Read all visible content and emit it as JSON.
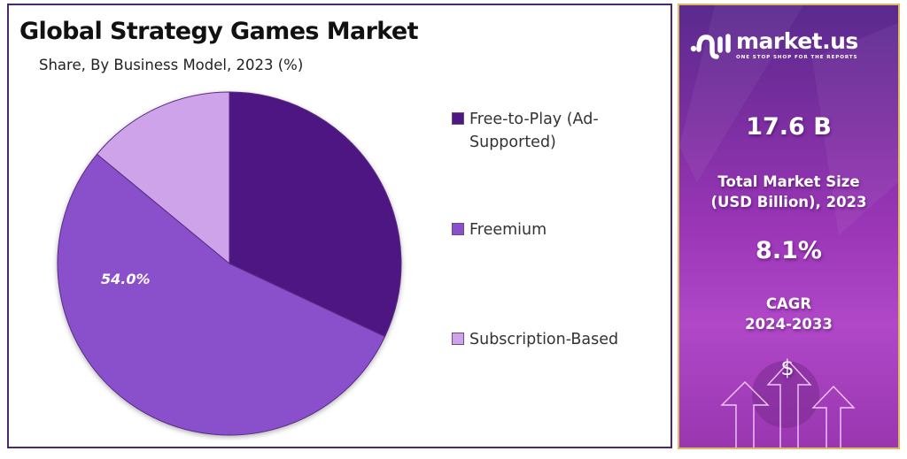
{
  "chart_data": {
    "type": "pie",
    "title": "Global Strategy Games Market",
    "subtitle": "Share, By Business Model, 2023 (%)",
    "categories": [
      "Free-to-Play (Ad-Supported)",
      "Freemium",
      "Subscription-Based"
    ],
    "values": [
      32.0,
      54.0,
      14.0
    ],
    "colors": [
      "#4e1882",
      "#8a4fcb",
      "#cfa3ea"
    ],
    "data_labels": [
      null,
      "54.0%",
      null
    ],
    "start_angle_deg": 0,
    "direction": "clockwise",
    "legend_position": "right"
  },
  "header": {
    "title": "Global Strategy Games Market",
    "subtitle": "Share, By Business Model, 2023 (%)"
  },
  "pie": {
    "highlight_label": "54.0%"
  },
  "legend": {
    "items": [
      {
        "label": "Free-to-Play (Ad-Supported)",
        "color": "#4e1882"
      },
      {
        "label": "Freemium",
        "color": "#8a4fcb"
      },
      {
        "label": "Subscription-Based",
        "color": "#cfa3ea"
      }
    ]
  },
  "sidebar": {
    "brand": {
      "name": "market.us",
      "tagline": "ONE STOP SHOP FOR THE REPORTS",
      "icon": "market-us-logo-icon"
    },
    "market_size": {
      "value": "17.6 B",
      "label_line1": "Total Market Size",
      "label_line2": "(USD Billion), 2023"
    },
    "cagr": {
      "value": "8.1%",
      "label_line1": "CAGR",
      "label_line2": "2024-2033"
    },
    "decoration": {
      "currency_symbol": "$",
      "icon": "growth-arrows-icon"
    }
  }
}
